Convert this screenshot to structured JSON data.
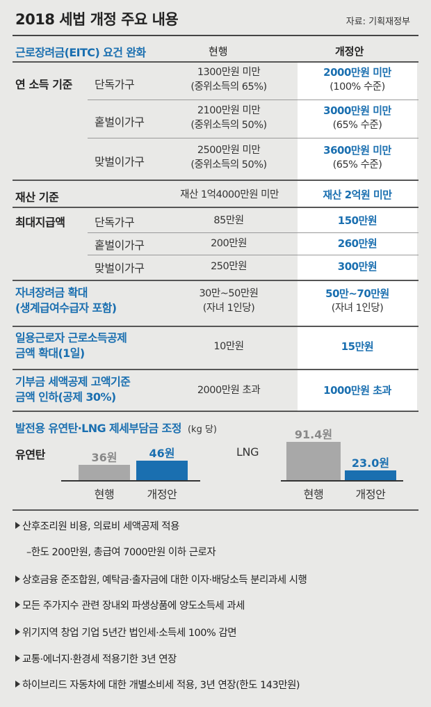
{
  "header": {
    "title": "2018 세법 개정 주요 내용",
    "source": "자료: 기획재정부"
  },
  "eitc": {
    "section_title": "근로장려금(EITC) 요건 완화",
    "col_current": "현행",
    "col_revised": "개정안",
    "income_label": "연 소득 기준",
    "income_rows": [
      {
        "label": "단독가구",
        "current_1": "1300만원 미만",
        "current_2": "(중위소득의 65%)",
        "revised_1": "2000만원 미만",
        "revised_2": "(100% 수준)"
      },
      {
        "label": "홑벌이가구",
        "current_1": "2100만원 미만",
        "current_2": "(중위소득의 50%)",
        "revised_1": "3000만원 미만",
        "revised_2": "(65% 수준)"
      },
      {
        "label": "맞벌이가구",
        "current_1": "2500만원 미만",
        "current_2": "(중위소득의 50%)",
        "revised_1": "3600만원 미만",
        "revised_2": "(65% 수준)"
      }
    ],
    "asset_label": "재산 기준",
    "asset_current": "재산 1억4000만원 미만",
    "asset_revised": "재산 2억원 미만",
    "max_label": "최대지급액",
    "max_rows": [
      {
        "label": "단독가구",
        "current": "85만원",
        "revised": "150만원"
      },
      {
        "label": "홑벌이가구",
        "current": "200만원",
        "revised": "260만원"
      },
      {
        "label": "맞벌이가구",
        "current": "250만원",
        "revised": "300만원"
      }
    ]
  },
  "child": {
    "label_1": "자녀장려금 확대",
    "label_2": "(생계급여수급자 포함)",
    "current_1": "30만~50만원",
    "current_2": "(자녀 1인당)",
    "revised_1": "50만~70만원",
    "revised_2": "(자녀 1인당)"
  },
  "daily": {
    "label_1": "일용근로자 근로소득공제",
    "label_2": "금액 확대(1일)",
    "current": "10만원",
    "revised": "15만원"
  },
  "donation": {
    "label_1": "기부금 세액공제 고액기준",
    "label_2": "금액 인하(공제 30%)",
    "current": "2000만원 초과",
    "revised": "1000만원 초과"
  },
  "fuel": {
    "section_title": "발전용 유연탄·LNG 제세부담금 조정",
    "unit": "(kg 당)"
  },
  "chart_data": [
    {
      "type": "bar",
      "title": "유연탄",
      "categories": [
        "현행",
        "개정안"
      ],
      "values": [
        36,
        46
      ],
      "value_labels": [
        "36원",
        "46원"
      ],
      "colors": [
        "#a8a8a8",
        "#1a6fb0"
      ]
    },
    {
      "type": "bar",
      "title": "LNG",
      "categories": [
        "현행",
        "개정안"
      ],
      "values": [
        91.4,
        23.0
      ],
      "value_labels": [
        "91.4원",
        "23.0원"
      ],
      "colors": [
        "#a8a8a8",
        "#1a6fb0"
      ]
    }
  ],
  "bullets": [
    "산후조리원 비용, 의료비 세액공제 적용",
    "–한도 200만원, 총급여 7000만원 이하 근로자",
    "상호금융 준조합원, 예탁금·출자금에 대한 이자·배당소득 분리과세 시행",
    "모든 주가지수 관련 장내외 파생상품에 양도소득세 과세",
    "위기지역 창업 기업 5년간 법인세·소득세 100% 감면",
    "교통·에너지·환경세 적용기한 3년 연장",
    "하이브리드 자동차에 대한 개별소비세 적용, 3년 연장(한도 143만원)"
  ]
}
